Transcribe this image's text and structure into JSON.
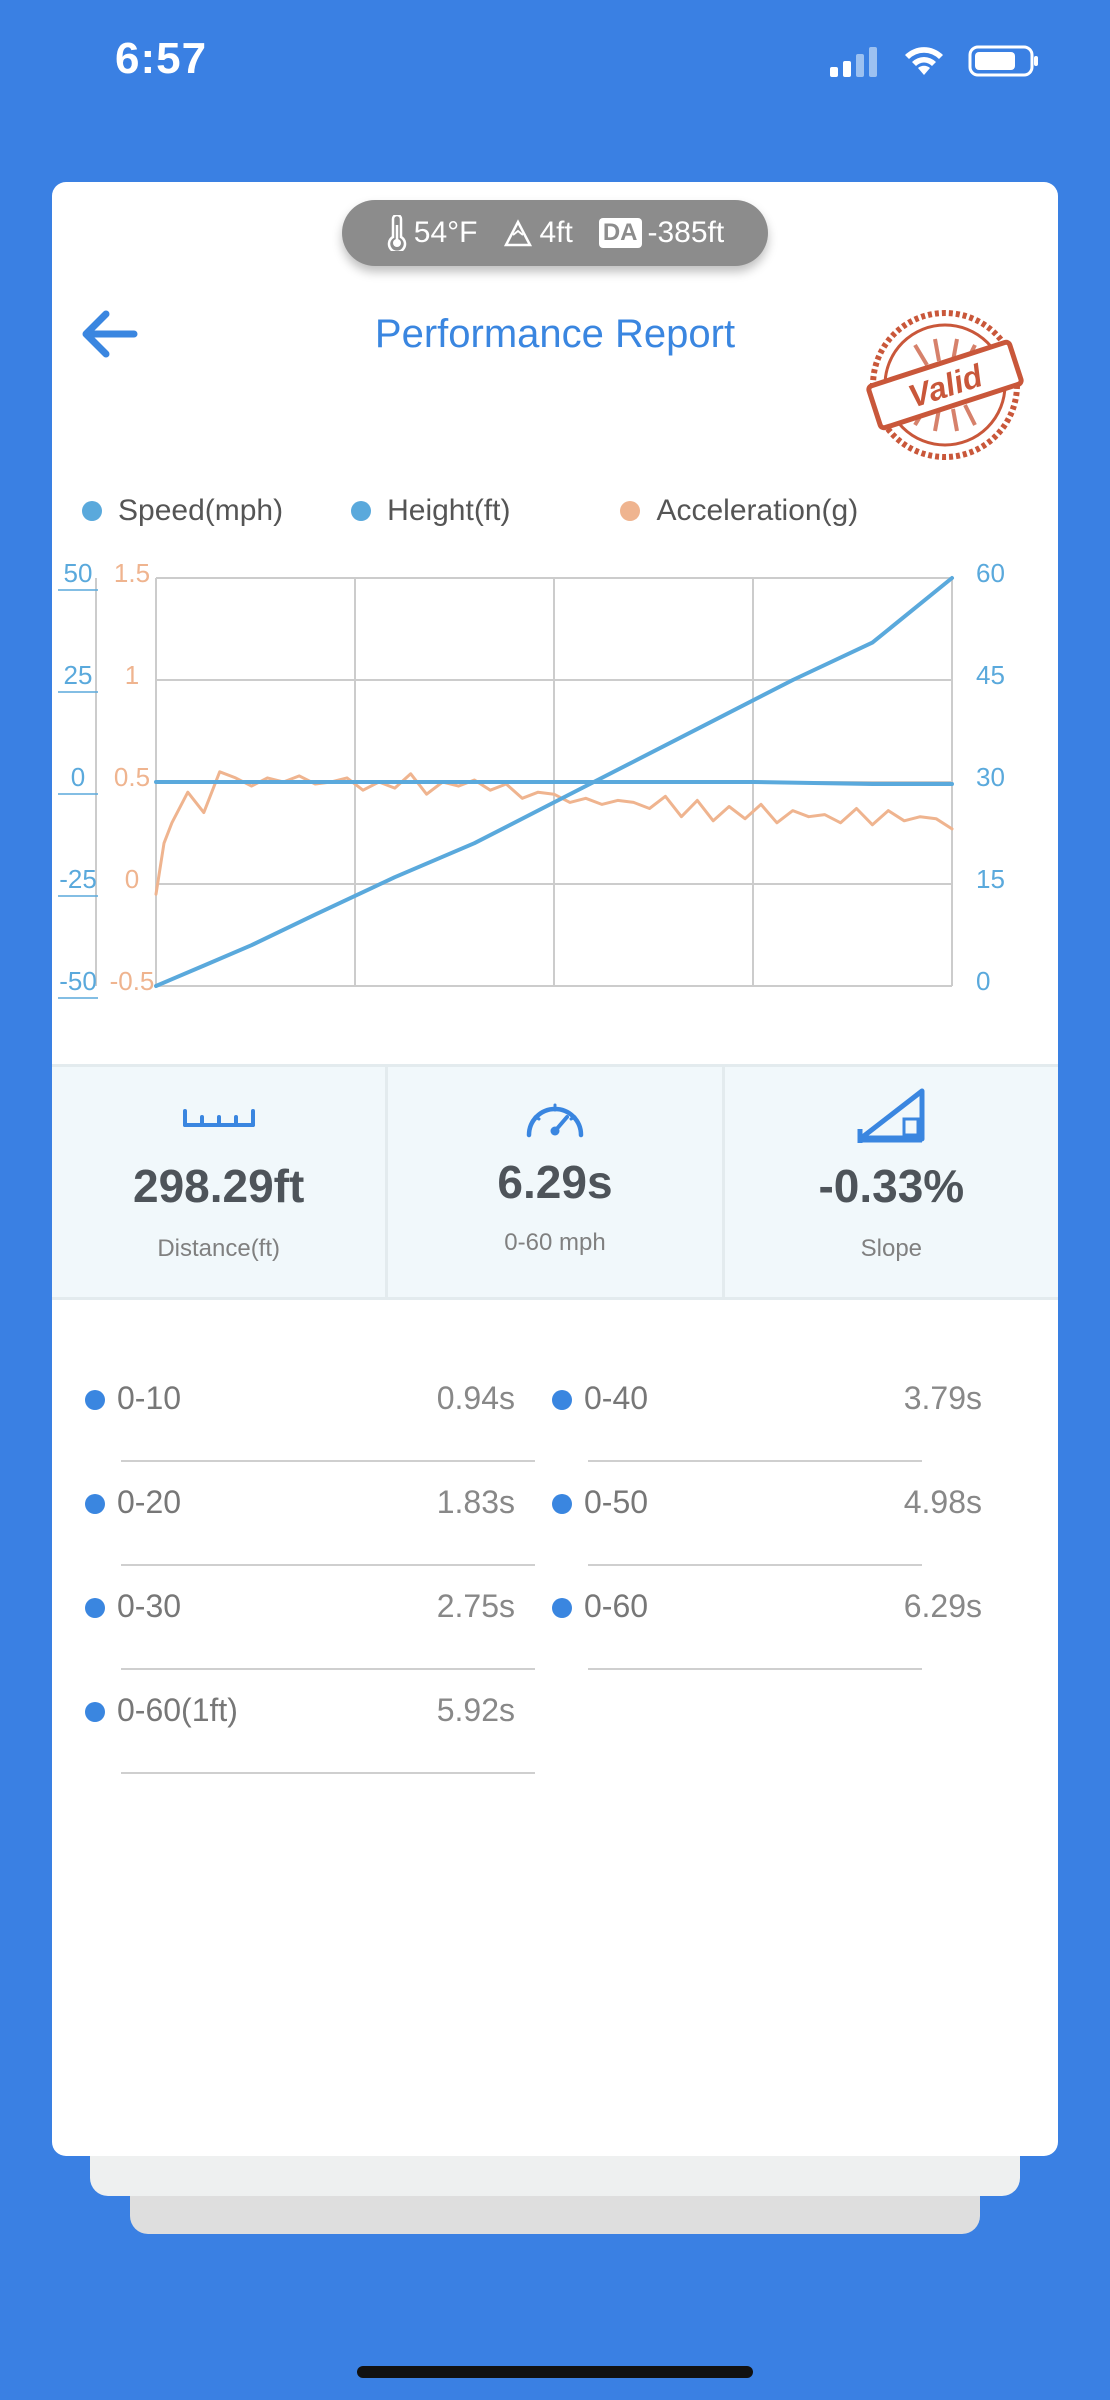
{
  "status_bar": {
    "time": "6:57"
  },
  "weather": {
    "temperature": "54°F",
    "elevation": "4ft",
    "da_badge": "DA",
    "density_altitude": "-385ft"
  },
  "header": {
    "title": "Performance Report",
    "stamp_text": "Valid"
  },
  "colors": {
    "background": "#3a80e3",
    "accent": "#3a86e0",
    "speed": "#5aa9dc",
    "height": "#5aa9dc",
    "acceleration": "#efb48f",
    "stamp": "#c9573a"
  },
  "legend": [
    {
      "label": "Speed(mph)",
      "color": "#5aa9dc"
    },
    {
      "label": "Height(ft)",
      "color": "#5aa9dc"
    },
    {
      "label": "Acceleration(g)",
      "color": "#efb48f"
    }
  ],
  "chart_data": {
    "type": "line",
    "x_divisions": 4,
    "axes": {
      "height_left": {
        "ticks": [
          "50",
          "25",
          "0",
          "-25",
          "-50"
        ],
        "ylim": [
          -50,
          50
        ]
      },
      "acceleration_left": {
        "ticks": [
          "1.5",
          "1",
          "0.5",
          "0",
          "-0.5"
        ],
        "ylim": [
          -0.5,
          1.5
        ]
      },
      "speed_right": {
        "ticks": [
          "60",
          "45",
          "30",
          "15",
          "0"
        ],
        "ylim": [
          0,
          60
        ]
      }
    },
    "series": [
      {
        "name": "Speed(mph)",
        "axis": "speed_right",
        "x": [
          0,
          0.02,
          0.06,
          0.12,
          0.2,
          0.3,
          0.4,
          0.5,
          0.6,
          0.7,
          0.8,
          0.9,
          1.0
        ],
        "values": [
          0,
          1,
          3,
          6,
          10.5,
          16,
          21,
          27,
          33,
          39,
          45,
          50.5,
          60
        ]
      },
      {
        "name": "Height(ft)",
        "axis": "height_left",
        "x": [
          0,
          0.25,
          0.5,
          0.75,
          0.9,
          1.0
        ],
        "values": [
          0,
          0,
          0,
          0,
          -0.5,
          -0.5
        ]
      },
      {
        "name": "Acceleration(g)",
        "axis": "acceleration_left",
        "x": [
          0,
          0.01,
          0.02,
          0.04,
          0.06,
          0.08,
          0.1,
          0.12,
          0.14,
          0.16,
          0.18,
          0.2,
          0.22,
          0.24,
          0.26,
          0.28,
          0.3,
          0.32,
          0.34,
          0.36,
          0.38,
          0.4,
          0.42,
          0.44,
          0.46,
          0.48,
          0.5,
          0.52,
          0.54,
          0.56,
          0.58,
          0.6,
          0.62,
          0.64,
          0.66,
          0.68,
          0.7,
          0.72,
          0.74,
          0.76,
          0.78,
          0.8,
          0.82,
          0.84,
          0.86,
          0.88,
          0.9,
          0.92,
          0.94,
          0.96,
          0.98,
          1.0
        ],
        "values": [
          -0.05,
          0.2,
          0.3,
          0.45,
          0.35,
          0.55,
          0.52,
          0.48,
          0.52,
          0.5,
          0.53,
          0.49,
          0.5,
          0.52,
          0.46,
          0.5,
          0.47,
          0.54,
          0.44,
          0.5,
          0.48,
          0.51,
          0.46,
          0.49,
          0.42,
          0.45,
          0.44,
          0.4,
          0.42,
          0.39,
          0.41,
          0.4,
          0.37,
          0.43,
          0.33,
          0.41,
          0.31,
          0.38,
          0.32,
          0.39,
          0.3,
          0.36,
          0.33,
          0.34,
          0.3,
          0.37,
          0.29,
          0.36,
          0.31,
          0.33,
          0.32,
          0.27
        ]
      }
    ]
  },
  "stats": [
    {
      "icon": "ruler-icon",
      "value": "298.29ft",
      "label": "Distance(ft)"
    },
    {
      "icon": "speedometer-icon",
      "value": "6.29s",
      "label": "0-60 mph"
    },
    {
      "icon": "slope-icon",
      "value": "-0.33%",
      "label": "Slope"
    }
  ],
  "splits": [
    {
      "label": "0-10",
      "value": "0.94s"
    },
    {
      "label": "0-40",
      "value": "3.79s"
    },
    {
      "label": "0-20",
      "value": "1.83s"
    },
    {
      "label": "0-50",
      "value": "4.98s"
    },
    {
      "label": "0-30",
      "value": "2.75s"
    },
    {
      "label": "0-60",
      "value": "6.29s"
    },
    {
      "label": "0-60(1ft)",
      "value": "5.92s"
    }
  ]
}
